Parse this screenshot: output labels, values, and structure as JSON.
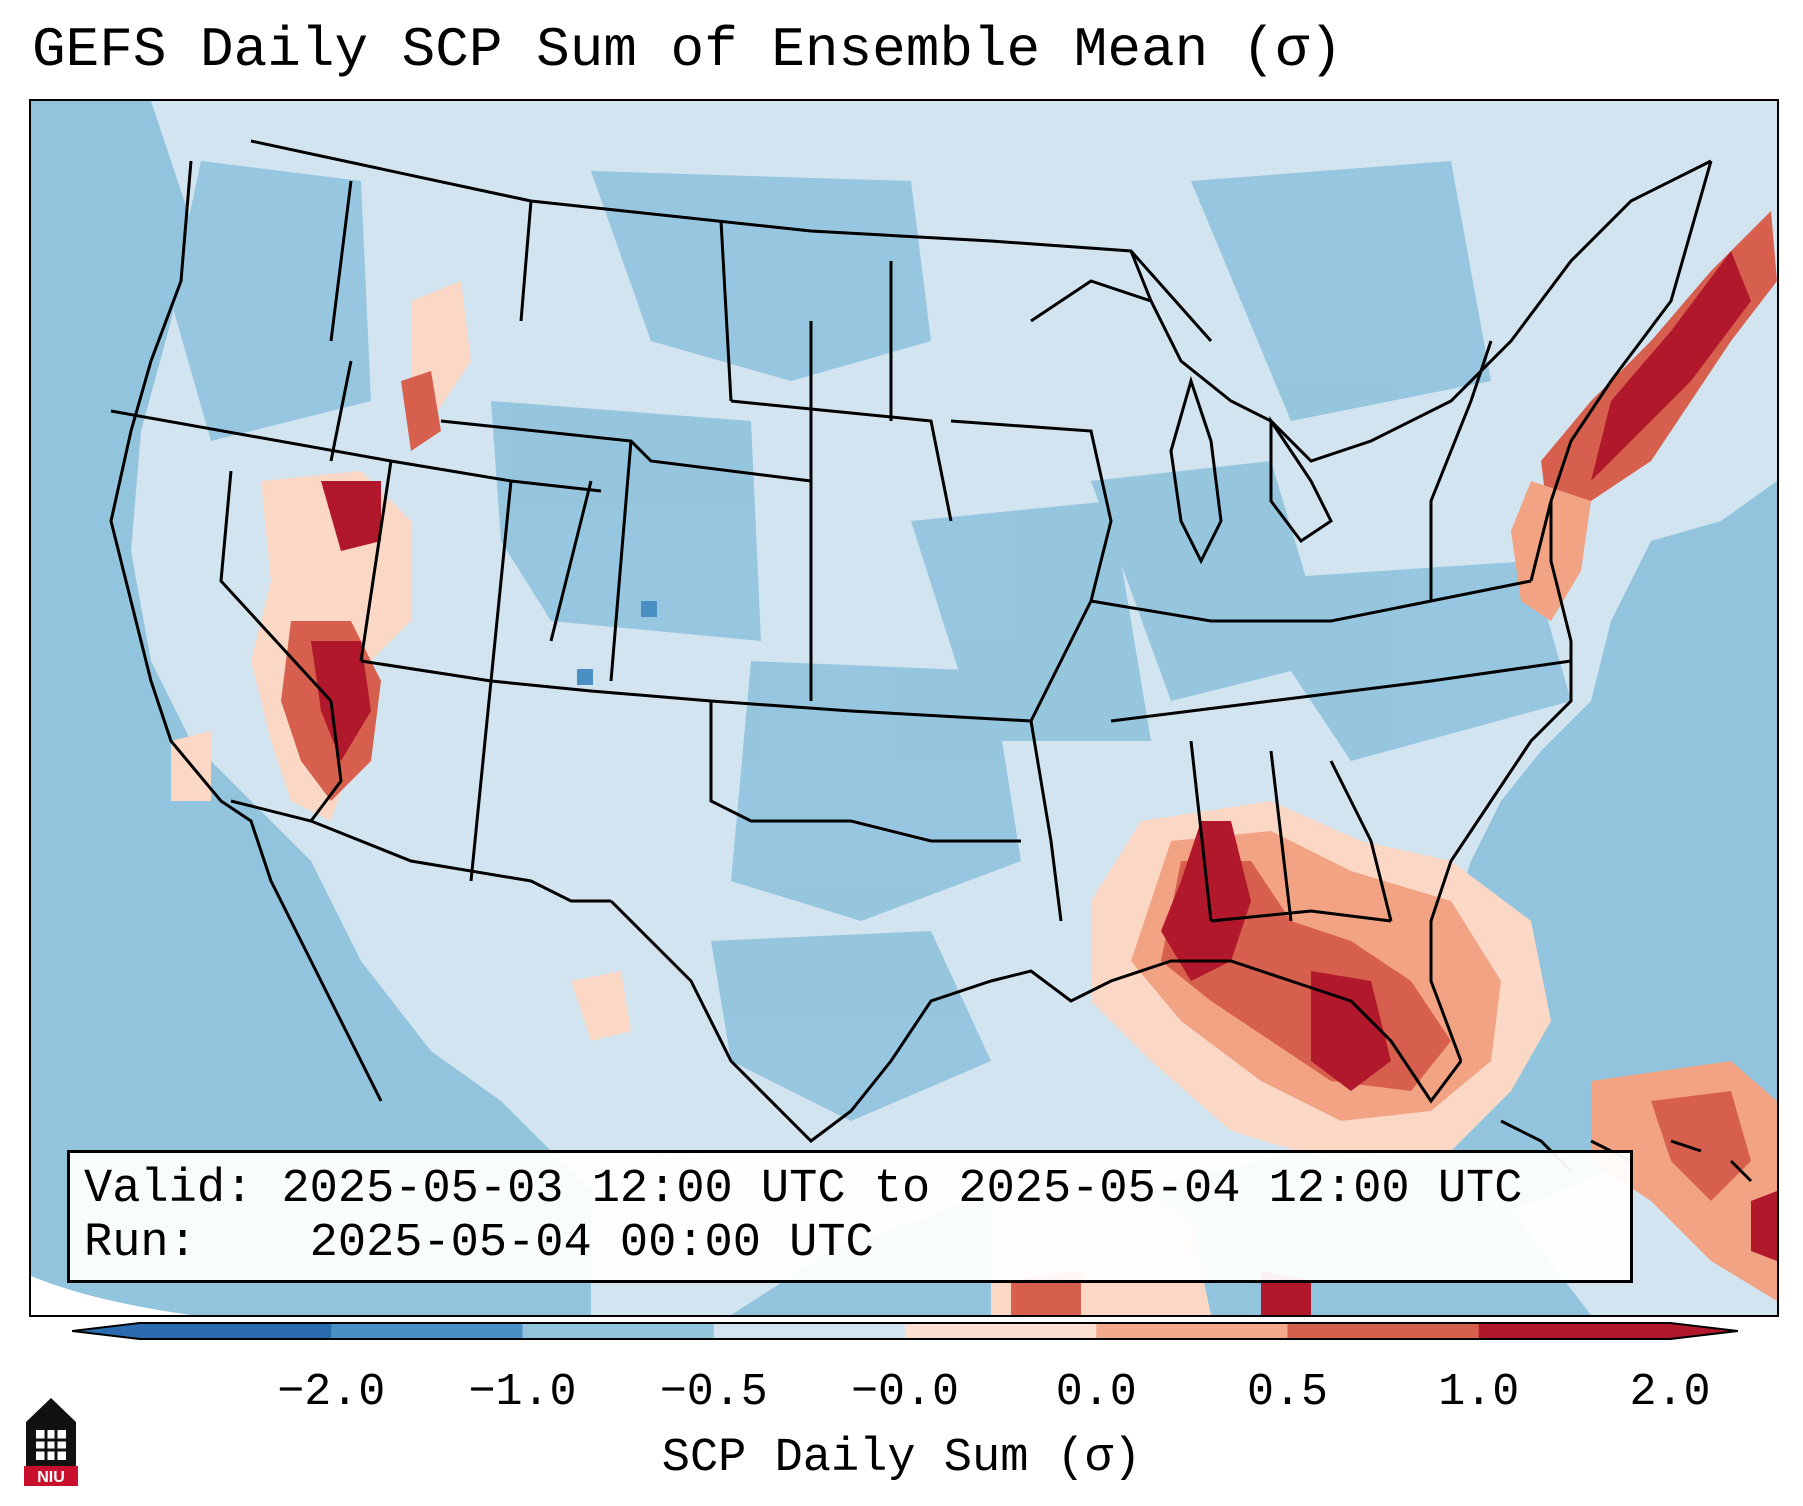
{
  "title": "GEFS Daily SCP Sum of Ensemble Mean (σ)",
  "info": {
    "valid_label": "Valid:",
    "valid_value": "2025-05-03 12:00 UTC to 2025-05-04 12:00 UTC",
    "run_label": "Run:",
    "run_value": "2025-05-04 00:00 UTC"
  },
  "colorbar": {
    "label": "SCP Daily Sum (σ)",
    "ticks": [
      "−2.0",
      "−1.0",
      "−0.5",
      "−0.0",
      "0.0",
      "0.5",
      "1.0",
      "2.0"
    ],
    "colors": [
      "#2b6cb0",
      "#4a90c4",
      "#93c4de",
      "#d1e4f0",
      "#fbe0d2",
      "#f3a98c",
      "#d6604d",
      "#b2182b"
    ],
    "extend": "both"
  },
  "palette": {
    "ocean": "#93c4de",
    "land": "#d1e4f0",
    "light_red": "#fbd8c6",
    "mid_red": "#f1a383",
    "red": "#d6604d",
    "dark_red": "#b2182b"
  },
  "logo": {
    "text": "NIU",
    "color": "#c8102e"
  }
}
